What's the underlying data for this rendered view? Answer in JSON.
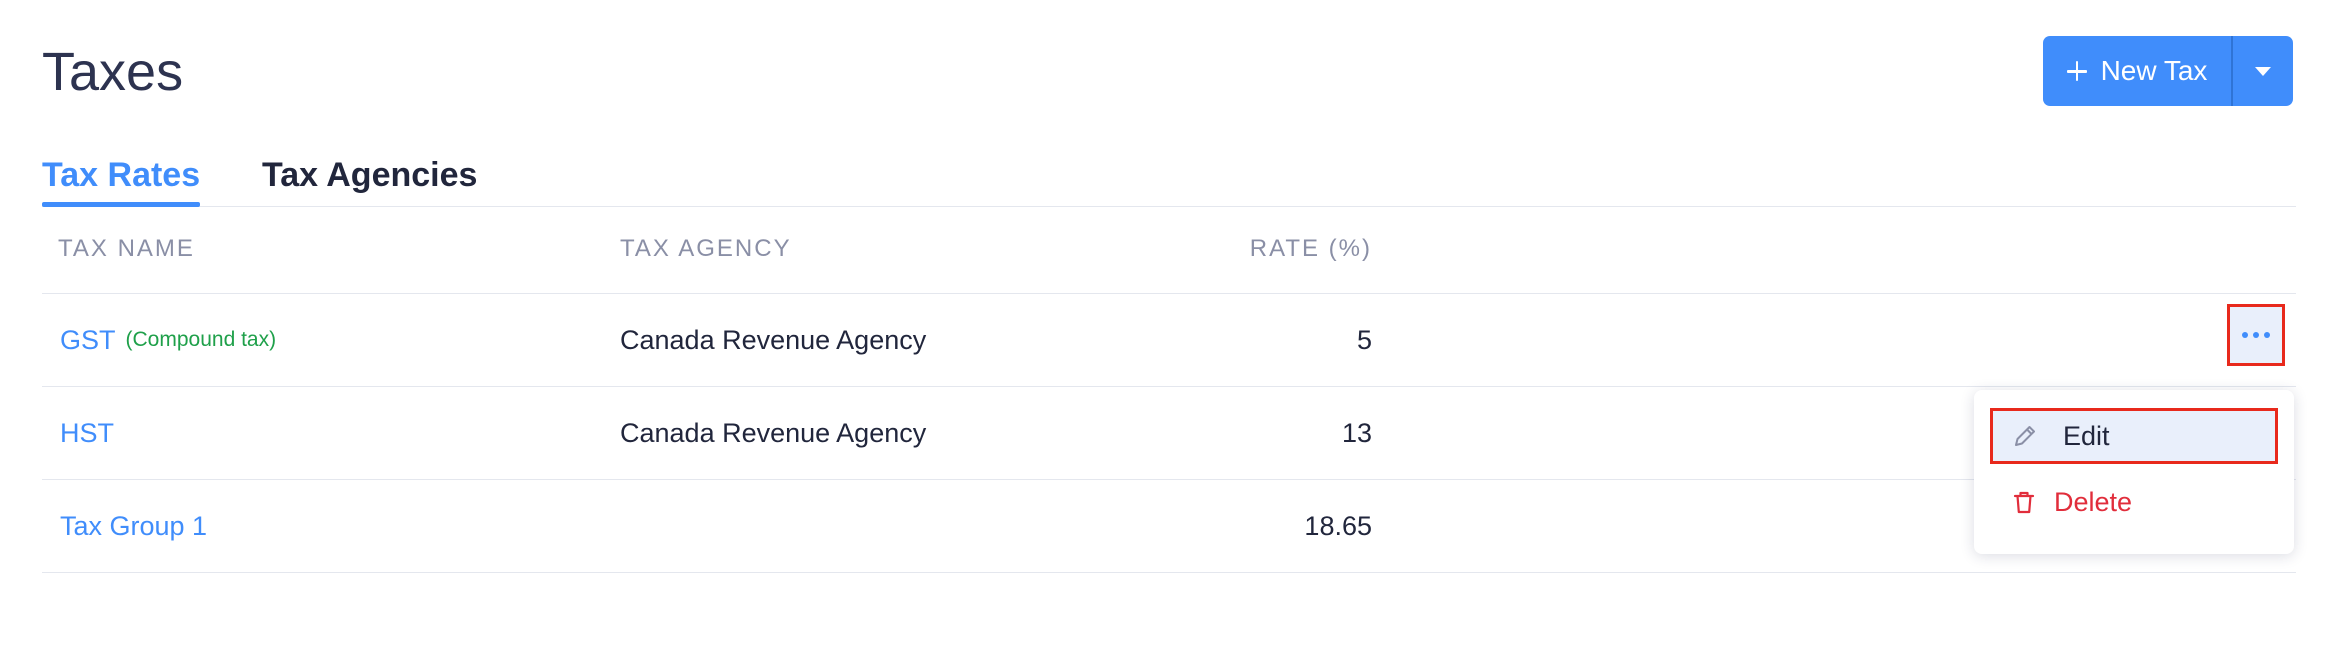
{
  "page": {
    "title": "Taxes"
  },
  "header": {
    "new_button_label": "New Tax",
    "icons": {
      "new": "plus-icon",
      "dropdown": "caret-down-icon"
    },
    "accent_color": "#408dfb"
  },
  "tabs": [
    {
      "label": "Tax Rates",
      "active": true
    },
    {
      "label": "Tax Agencies",
      "active": false
    }
  ],
  "table": {
    "columns": [
      "TAX NAME",
      "TAX AGENCY",
      "RATE (%)"
    ],
    "rows": [
      {
        "name": "GST",
        "tag": "(Compound tax)",
        "agency": "Canada Revenue Agency",
        "rate": "5"
      },
      {
        "name": "HST",
        "tag": "",
        "agency": "Canada Revenue Agency",
        "rate": "13"
      },
      {
        "name": "Tax Group 1",
        "tag": "",
        "agency": "",
        "rate": "18.65"
      }
    ]
  },
  "row_actions": {
    "more_icon": "more-horizontal-icon",
    "menu": [
      {
        "label": "Edit",
        "icon": "pencil-icon"
      },
      {
        "label": "Delete",
        "icon": "trash-icon"
      }
    ]
  },
  "colors": {
    "link": "#408dfb",
    "compound_tag": "#1fa04a",
    "delete": "#e12d3b",
    "highlight_border": "#e8291c"
  }
}
